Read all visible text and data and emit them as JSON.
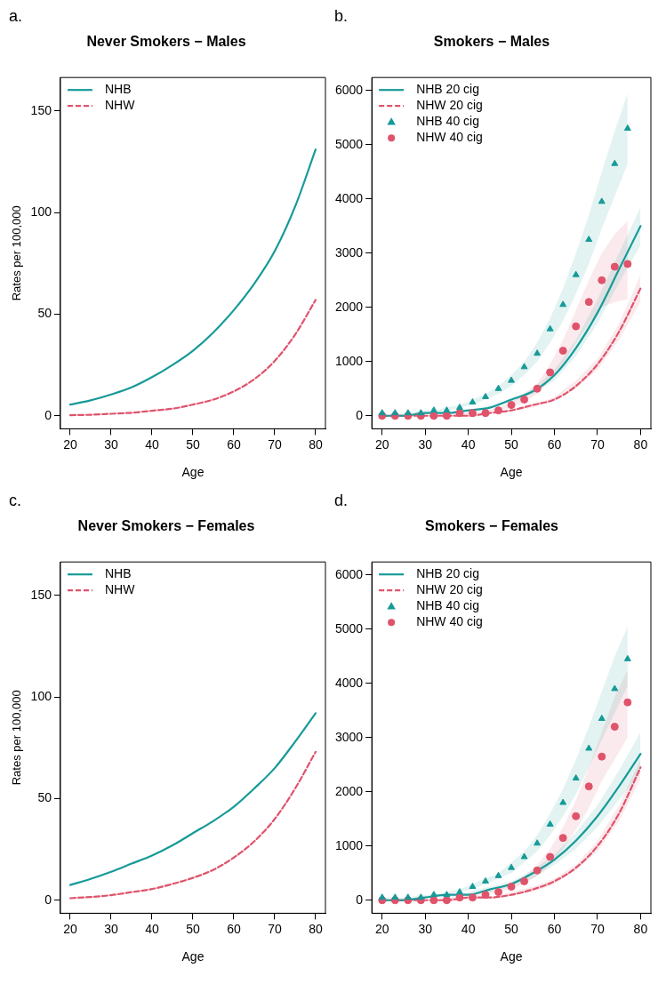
{
  "chart_data": [
    {
      "type": "line",
      "title": "Never Smokers − Males",
      "xlabel": "Age",
      "ylabel": "Rates per 100,000",
      "annotations": [
        "a."
      ],
      "xlim": [
        17.6,
        82.4
      ],
      "ylim": [
        -6.4,
        166.4
      ],
      "xticks": [
        20,
        30,
        40,
        50,
        60,
        70,
        80
      ],
      "yticks": [
        0,
        50,
        100,
        150
      ],
      "legend": "top left",
      "series": [
        {
          "name": "NHB",
          "color": "#169a98",
          "line_style": "solid",
          "x": [
            20,
            25,
            30,
            35,
            40,
            45,
            50,
            55,
            60,
            65,
            70,
            75,
            80
          ],
          "values": [
            5.5,
            7.6,
            10.5,
            14,
            19,
            25,
            32,
            41,
            52,
            65,
            81,
            103,
            131
          ]
        },
        {
          "name": "NHW",
          "color": "#df536b",
          "line_style": "dashed",
          "x": [
            20,
            25,
            30,
            35,
            40,
            45,
            50,
            55,
            60,
            65,
            70,
            75,
            80
          ],
          "values": [
            0.3,
            0.5,
            1,
            1.5,
            2.5,
            3.5,
            5.5,
            8,
            12,
            18,
            27,
            40,
            57
          ]
        }
      ]
    },
    {
      "type": "line",
      "title": "Smokers − Males",
      "xlabel": "Age",
      "annotations": [
        "b."
      ],
      "xlim": [
        17.6,
        82.4
      ],
      "ylim": [
        -240,
        6240
      ],
      "xticks": [
        20,
        30,
        40,
        50,
        60,
        70,
        80
      ],
      "yticks": [
        0,
        1000,
        2000,
        3000,
        4000,
        5000,
        6000
      ],
      "legend": "top left",
      "series": [
        {
          "name": "NHB 20 cig",
          "color": "#169a98",
          "line_style": "solid",
          "x": [
            20,
            25,
            30,
            35,
            40,
            45,
            50,
            55,
            60,
            65,
            70,
            75,
            80
          ],
          "values": [
            0,
            0,
            50,
            50,
            100,
            150,
            300,
            450,
            750,
            1250,
            1900,
            2700,
            3500
          ],
          "lower": [
            0,
            0,
            50,
            50,
            100,
            150,
            250,
            400,
            650,
            1100,
            1700,
            2450,
            3150
          ],
          "upper": [
            0,
            50,
            50,
            50,
            100,
            200,
            300,
            500,
            850,
            1400,
            2150,
            3000,
            3850
          ]
        },
        {
          "name": "NHW 20 cig",
          "color": "#df536b",
          "line_style": "dashed",
          "x": [
            20,
            25,
            30,
            35,
            40,
            45,
            50,
            55,
            60,
            65,
            70,
            75,
            80
          ],
          "values": [
            0,
            0,
            0,
            0,
            0,
            50,
            100,
            200,
            300,
            550,
            950,
            1550,
            2350
          ],
          "lower": [
            0,
            0,
            0,
            0,
            0,
            50,
            100,
            150,
            300,
            500,
            850,
            1400,
            2100
          ],
          "upper": [
            0,
            0,
            0,
            0,
            50,
            50,
            100,
            200,
            350,
            650,
            1050,
            1700,
            2600
          ]
        },
        {
          "name": "NHB 40 cig",
          "color": "#169a98",
          "type": "scatter",
          "marker": "triangle",
          "x": [
            20,
            23,
            26,
            29,
            32,
            35,
            38,
            41,
            44,
            47,
            50,
            53,
            56,
            59,
            62,
            65,
            68,
            71,
            74,
            77
          ],
          "values": [
            50,
            50,
            50,
            50,
            100,
            100,
            150,
            250,
            350,
            500,
            650,
            900,
            1150,
            1600,
            2050,
            2600,
            3250,
            3950,
            4650,
            5300
          ],
          "lower": [
            50,
            50,
            50,
            50,
            50,
            100,
            150,
            200,
            300,
            400,
            550,
            750,
            1000,
            1350,
            1750,
            2250,
            2800,
            3450,
            4050,
            4650
          ],
          "upper": [
            50,
            50,
            50,
            100,
            100,
            150,
            200,
            300,
            400,
            550,
            750,
            1000,
            1350,
            1800,
            2350,
            3000,
            3700,
            4500,
            5250,
            5950
          ]
        },
        {
          "name": "NHW 40 cig",
          "color": "#df536b",
          "type": "scatter",
          "marker": "circle",
          "x": [
            20,
            23,
            26,
            29,
            32,
            35,
            38,
            41,
            44,
            47,
            50,
            53,
            56,
            59,
            62,
            65,
            68,
            71,
            74,
            77
          ],
          "values": [
            0,
            0,
            0,
            0,
            0,
            0,
            50,
            50,
            50,
            100,
            200,
            300,
            500,
            800,
            1200,
            1650,
            2100,
            2500,
            2750,
            2800
          ],
          "lower": [
            0,
            0,
            0,
            0,
            0,
            0,
            0,
            50,
            50,
            100,
            150,
            250,
            400,
            650,
            950,
            1350,
            1700,
            2000,
            2100,
            2150
          ],
          "upper": [
            0,
            0,
            0,
            0,
            0,
            50,
            50,
            50,
            100,
            150,
            250,
            400,
            600,
            950,
            1400,
            1950,
            2500,
            3000,
            3350,
            3600
          ]
        }
      ]
    },
    {
      "type": "line",
      "title": "Never Smokers − Females",
      "xlabel": "Age",
      "ylabel": "Rates per 100,000",
      "annotations": [
        "c."
      ],
      "xlim": [
        17.6,
        82.4
      ],
      "ylim": [
        -6.4,
        166.4
      ],
      "xticks": [
        20,
        30,
        40,
        50,
        60,
        70,
        80
      ],
      "yticks": [
        0,
        50,
        100,
        150
      ],
      "legend": "top left",
      "series": [
        {
          "name": "NHB",
          "color": "#169a98",
          "line_style": "solid",
          "x": [
            20,
            25,
            30,
            35,
            40,
            45,
            50,
            55,
            60,
            65,
            70,
            75,
            80
          ],
          "values": [
            7.5,
            10.5,
            14,
            18,
            22,
            27,
            33,
            39,
            46,
            55,
            65,
            78,
            92
          ]
        },
        {
          "name": "NHW",
          "color": "#df536b",
          "line_style": "dashed",
          "x": [
            20,
            25,
            30,
            35,
            40,
            45,
            50,
            55,
            60,
            65,
            70,
            75,
            80
          ],
          "values": [
            1,
            1.6,
            2.5,
            4,
            5.5,
            8,
            11,
            15,
            21,
            29,
            40,
            55,
            73
          ]
        }
      ]
    },
    {
      "type": "line",
      "title": "Smokers − Females",
      "xlabel": "Age",
      "annotations": [
        "d."
      ],
      "xlim": [
        17.6,
        82.4
      ],
      "ylim": [
        -240,
        6240
      ],
      "xticks": [
        20,
        30,
        40,
        50,
        60,
        70,
        80
      ],
      "yticks": [
        0,
        1000,
        2000,
        3000,
        4000,
        5000,
        6000
      ],
      "legend": "top left",
      "series": [
        {
          "name": "NHB 20 cig",
          "color": "#169a98",
          "line_style": "solid",
          "x": [
            20,
            25,
            30,
            35,
            40,
            45,
            50,
            55,
            60,
            65,
            70,
            75,
            80
          ],
          "values": [
            0,
            0,
            50,
            100,
            100,
            200,
            300,
            500,
            750,
            1100,
            1550,
            2100,
            2700
          ],
          "lower": [
            0,
            0,
            50,
            50,
            100,
            150,
            250,
            400,
            650,
            950,
            1350,
            1850,
            2350
          ],
          "upper": [
            0,
            50,
            50,
            100,
            150,
            250,
            350,
            550,
            850,
            1250,
            1750,
            2400,
            3100
          ]
        },
        {
          "name": "NHW 20 cig",
          "color": "#df536b",
          "line_style": "dashed",
          "x": [
            20,
            25,
            30,
            35,
            40,
            45,
            50,
            55,
            60,
            65,
            70,
            75,
            80
          ],
          "values": [
            0,
            0,
            0,
            0,
            50,
            50,
            100,
            200,
            350,
            600,
            1000,
            1600,
            2450
          ],
          "lower": [
            0,
            0,
            0,
            0,
            0,
            50,
            100,
            150,
            300,
            550,
            900,
            1450,
            2250
          ],
          "upper": [
            0,
            0,
            0,
            50,
            50,
            50,
            150,
            250,
            400,
            650,
            1100,
            1750,
            2600
          ]
        },
        {
          "name": "NHB 40 cig",
          "color": "#169a98",
          "type": "scatter",
          "marker": "triangle",
          "x": [
            20,
            23,
            26,
            29,
            32,
            35,
            38,
            41,
            44,
            47,
            50,
            53,
            56,
            59,
            62,
            65,
            68,
            71,
            74,
            77
          ],
          "values": [
            50,
            50,
            50,
            50,
            100,
            100,
            150,
            250,
            350,
            450,
            600,
            800,
            1050,
            1400,
            1800,
            2250,
            2800,
            3350,
            3900,
            4450
          ],
          "lower": [
            0,
            50,
            50,
            50,
            50,
            100,
            150,
            200,
            300,
            400,
            500,
            700,
            900,
            1200,
            1550,
            1950,
            2450,
            2950,
            3450,
            3950
          ],
          "upper": [
            50,
            50,
            50,
            100,
            100,
            150,
            200,
            300,
            400,
            500,
            700,
            900,
            1200,
            1600,
            2050,
            2600,
            3200,
            3850,
            4500,
            5050
          ]
        },
        {
          "name": "NHW 40 cig",
          "color": "#df536b",
          "type": "scatter",
          "marker": "circle",
          "x": [
            20,
            23,
            26,
            29,
            32,
            35,
            38,
            41,
            44,
            47,
            50,
            53,
            56,
            59,
            62,
            65,
            68,
            71,
            74,
            77
          ],
          "values": [
            0,
            0,
            0,
            0,
            0,
            0,
            50,
            50,
            100,
            150,
            250,
            350,
            550,
            800,
            1150,
            1550,
            2100,
            2650,
            3200,
            3650
          ],
          "lower": [
            0,
            0,
            0,
            0,
            0,
            0,
            50,
            50,
            100,
            150,
            200,
            300,
            450,
            650,
            950,
            1300,
            1700,
            2200,
            2600,
            3000
          ],
          "upper": [
            0,
            0,
            0,
            0,
            0,
            50,
            50,
            100,
            150,
            200,
            300,
            450,
            650,
            950,
            1350,
            1850,
            2450,
            3100,
            3750,
            4250
          ]
        }
      ]
    }
  ]
}
